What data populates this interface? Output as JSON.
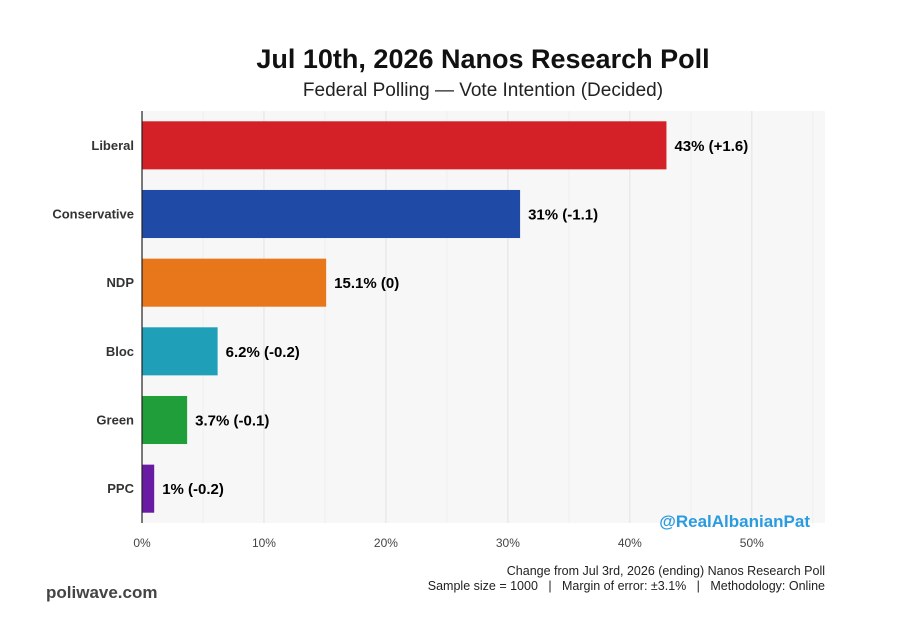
{
  "chart_data": {
    "type": "bar",
    "orientation": "horizontal",
    "title": "Jul 10th, 2026 Nanos Research Poll",
    "subtitle": "Federal Polling — Vote Intention (Decided)",
    "categories": [
      "Liberal",
      "Conservative",
      "NDP",
      "Bloc",
      "Green",
      "PPC"
    ],
    "values": [
      43,
      31,
      15.1,
      6.2,
      3.7,
      1
    ],
    "value_labels": [
      "43% (+1.6)",
      "31% (-1.1)",
      "15.1% (0)",
      "6.2% (-0.2)",
      "3.7% (-0.1)",
      "1% (-0.2)"
    ],
    "colors": [
      "#d42027",
      "#1f4aa5",
      "#e8761a",
      "#20a0b8",
      "#1f9e3a",
      "#6a1ba4"
    ],
    "xlim": [
      0,
      56
    ],
    "x_ticks": [
      0,
      10,
      20,
      30,
      40,
      50
    ],
    "x_tick_labels": [
      "0%",
      "10%",
      "20%",
      "30%",
      "40%",
      "50%"
    ],
    "grid": true
  },
  "watermark": "@RealAlbanianPat",
  "footer": {
    "site": "poliwave.com",
    "line1": "Change from Jul 3rd, 2026 (ending) Nanos Research Poll",
    "line2": "Sample size = 1000   |   Margin of error: ±3.1%   |   Methodology: Online"
  }
}
